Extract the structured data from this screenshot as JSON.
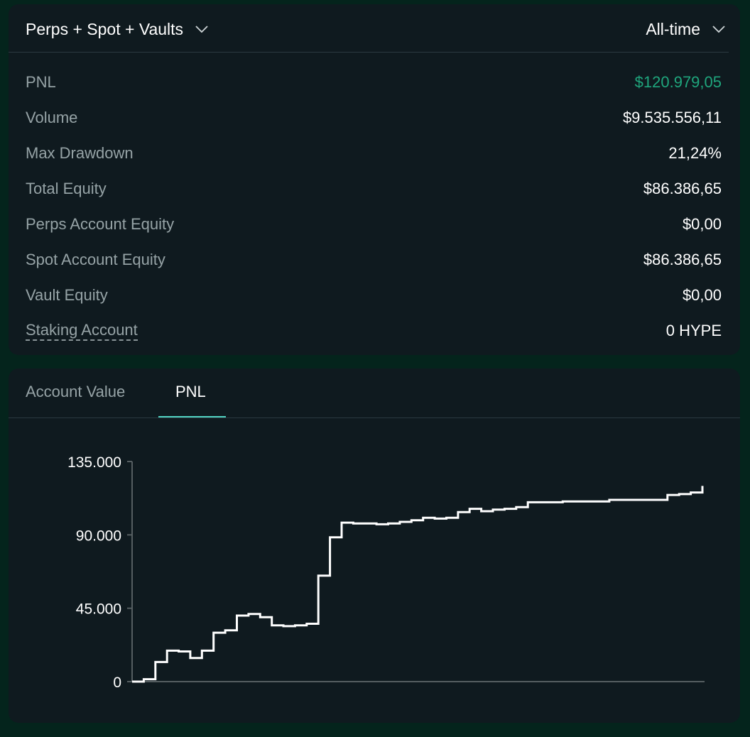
{
  "header": {
    "scope_dropdown": {
      "label": "Perps + Spot + Vaults",
      "icon": "chevron-down-icon"
    },
    "range_dropdown": {
      "label": "All-time",
      "icon": "chevron-down-icon"
    }
  },
  "stats": [
    {
      "label": "PNL",
      "value": "$120.979,05",
      "color": "#1fa67d"
    },
    {
      "label": "Volume",
      "value": "$9.535.556,11"
    },
    {
      "label": "Max Drawdown",
      "value": "21,24%"
    },
    {
      "label": "Total Equity",
      "value": "$86.386,65"
    },
    {
      "label": "Perps Account Equity",
      "value": "$0,00"
    },
    {
      "label": "Spot Account Equity",
      "value": "$86.386,65"
    },
    {
      "label": "Vault Equity",
      "value": "$0,00"
    },
    {
      "label": "Staking Account",
      "value": "0 HYPE"
    }
  ],
  "chart_tabs": {
    "account_value": "Account Value",
    "pnl": "PNL",
    "active": "pnl",
    "accent": "#50d2c1"
  },
  "chart_data": {
    "type": "line",
    "step": true,
    "ylim": [
      0,
      135000
    ],
    "yticks": [
      0,
      45000,
      90000,
      135000
    ],
    "ytick_labels": [
      "0",
      "45.000",
      "90.000",
      "135.000"
    ],
    "series": [
      {
        "color": "#ffffff",
        "values": [
          0,
          1500,
          12000,
          19000,
          18500,
          14500,
          19000,
          30000,
          31500,
          40500,
          41500,
          39500,
          34500,
          34000,
          34500,
          35500,
          65000,
          88500,
          97500,
          97000,
          97000,
          96500,
          97000,
          98000,
          99000,
          100500,
          100000,
          100500,
          104000,
          106000,
          104500,
          105500,
          106000,
          107000,
          110000,
          110000,
          110000,
          110500,
          110500,
          110500,
          110500,
          111500,
          111500,
          111500,
          111500,
          111500,
          114500,
          115000,
          116000,
          120000
        ]
      }
    ]
  }
}
